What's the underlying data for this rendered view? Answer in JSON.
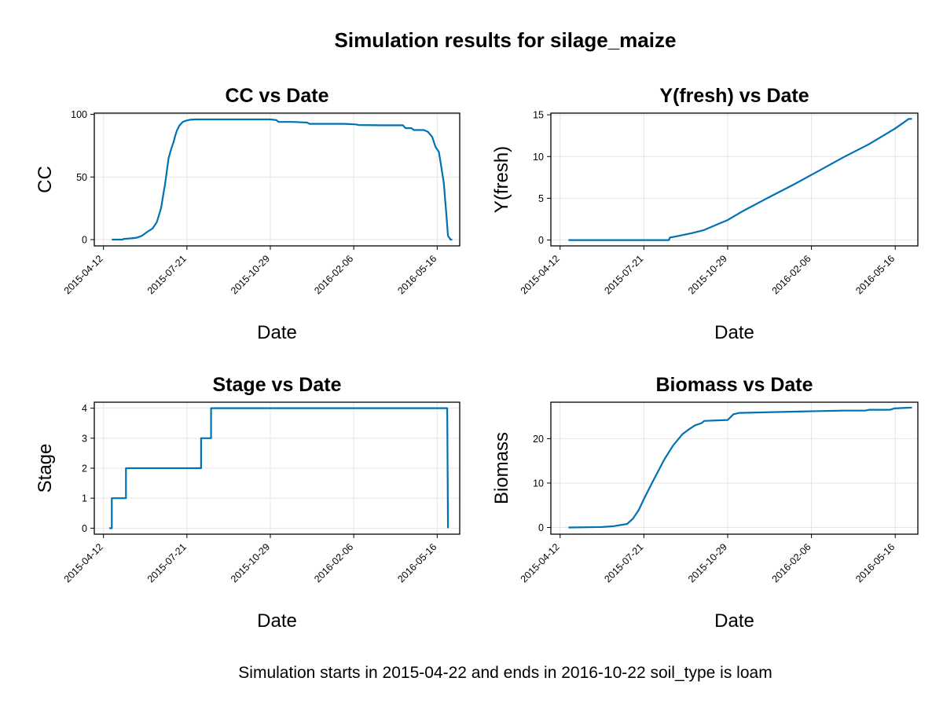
{
  "figure": {
    "title": "Simulation results for silage_maize",
    "footer": "Simulation starts in 2015-04-22 and ends in 2016-10-22 soil_type is loam",
    "line_color": "#0072b2",
    "grid_color": "#e5e5e5"
  },
  "chart_data": [
    {
      "type": "line",
      "title": "CC vs Date",
      "xlabel": "Date",
      "ylabel": "CC",
      "x_ticks": [
        "2015-04-12",
        "2015-07-21",
        "2015-10-29",
        "2016-02-06",
        "2016-05-16"
      ],
      "y_ticks": [
        0,
        50,
        100
      ],
      "xlim": [
        "2015-04-01",
        "2016-06-12"
      ],
      "ylim": [
        -5,
        101
      ],
      "grid": true,
      "series": [
        {
          "x": [
            "2015-04-22",
            "2015-05-05",
            "2015-05-06",
            "2015-05-15",
            "2015-05-22",
            "2015-05-28",
            "2015-06-03",
            "2015-06-10",
            "2015-06-15",
            "2015-06-20",
            "2015-06-25",
            "2015-06-29",
            "2015-07-02",
            "2015-07-05",
            "2015-07-07",
            "2015-07-09",
            "2015-07-12",
            "2015-07-16",
            "2015-07-20",
            "2015-07-25",
            "2015-08-01",
            "2015-08-15",
            "2015-09-10",
            "2015-10-15",
            "2015-10-29",
            "2015-11-05",
            "2015-11-08",
            "2015-11-25",
            "2015-12-12",
            "2015-12-15",
            "2016-01-25",
            "2016-02-08",
            "2016-02-12",
            "2016-03-10",
            "2016-04-05",
            "2016-04-08",
            "2016-04-15",
            "2016-04-18",
            "2016-04-30",
            "2016-05-05",
            "2016-05-10",
            "2016-05-14",
            "2016-05-18",
            "2016-05-21",
            "2016-05-24",
            "2016-05-27",
            "2016-05-29",
            "2016-06-01",
            "2016-06-03"
          ],
          "y": [
            0,
            0,
            0.5,
            1,
            1.5,
            3,
            6,
            9,
            14,
            25,
            45,
            65,
            72,
            78,
            83,
            87,
            91,
            94,
            95,
            95.7,
            96,
            96,
            96,
            96,
            96,
            95.5,
            94,
            94,
            93.5,
            92.5,
            92.5,
            92,
            91.5,
            91.3,
            91.3,
            89,
            89,
            87.5,
            87.5,
            86,
            82,
            74,
            70,
            58,
            45,
            20,
            3,
            0,
            0
          ]
        }
      ]
    },
    {
      "type": "line",
      "title": "Y(fresh) vs Date",
      "xlabel": "Date",
      "ylabel": "Y(fresh)",
      "x_ticks": [
        "2015-04-12",
        "2015-07-21",
        "2015-10-29",
        "2016-02-06",
        "2016-05-16"
      ],
      "y_ticks": [
        0,
        5,
        10,
        15
      ],
      "xlim": [
        "2015-04-01",
        "2016-06-12"
      ],
      "ylim": [
        -0.7,
        15.2
      ],
      "grid": true,
      "series": [
        {
          "x": [
            "2015-04-22",
            "2015-08-20",
            "2015-08-21",
            "2015-09-01",
            "2015-09-15",
            "2015-10-01",
            "2015-10-15",
            "2015-10-29",
            "2015-11-15",
            "2015-12-15",
            "2016-01-15",
            "2016-02-15",
            "2016-03-15",
            "2016-04-15",
            "2016-05-15",
            "2016-05-25",
            "2016-06-01",
            "2016-06-05"
          ],
          "y": [
            0,
            0,
            0.3,
            0.5,
            0.8,
            1.2,
            1.8,
            2.4,
            3.4,
            5,
            6.6,
            8.3,
            9.9,
            11.5,
            13.3,
            14,
            14.5,
            14.5
          ]
        }
      ]
    },
    {
      "type": "line",
      "title": "Stage vs Date",
      "xlabel": "Date",
      "ylabel": "Stage",
      "x_ticks": [
        "2015-04-12",
        "2015-07-21",
        "2015-10-29",
        "2016-02-06",
        "2016-05-16"
      ],
      "y_ticks": [
        0,
        1,
        2,
        3,
        4
      ],
      "xlim": [
        "2015-04-01",
        "2016-06-12"
      ],
      "ylim": [
        -0.2,
        4.2
      ],
      "grid": true,
      "series": [
        {
          "x": [
            "2015-04-19",
            "2015-04-22",
            "2015-04-22",
            "2015-05-09",
            "2015-05-09",
            "2015-08-07",
            "2015-08-07",
            "2015-08-19",
            "2015-08-19",
            "2016-05-28",
            "2016-05-29"
          ],
          "y": [
            0,
            0,
            1,
            1,
            2,
            2,
            3,
            3,
            4,
            4,
            0
          ]
        }
      ]
    },
    {
      "type": "line",
      "title": "Biomass vs Date",
      "xlabel": "Date",
      "ylabel": "Biomass",
      "x_ticks": [
        "2015-04-12",
        "2015-07-21",
        "2015-10-29",
        "2016-02-06",
        "2016-05-16"
      ],
      "y_ticks": [
        0,
        10,
        20
      ],
      "xlim": [
        "2015-04-01",
        "2016-06-12"
      ],
      "ylim": [
        -1.5,
        28.2
      ],
      "grid": true,
      "series": [
        {
          "x": [
            "2015-04-22",
            "2015-06-01",
            "2015-06-15",
            "2015-07-01",
            "2015-07-08",
            "2015-07-15",
            "2015-07-22",
            "2015-08-01",
            "2015-08-15",
            "2015-08-25",
            "2015-09-05",
            "2015-09-12",
            "2015-09-20",
            "2015-09-28",
            "2015-10-01",
            "2015-10-29",
            "2015-11-05",
            "2015-11-12",
            "2016-01-01",
            "2016-02-15",
            "2016-03-15",
            "2016-04-10",
            "2016-04-15",
            "2016-05-10",
            "2016-05-15",
            "2016-06-05"
          ],
          "y": [
            0,
            0.1,
            0.3,
            0.8,
            2,
            4,
            6.8,
            10.5,
            15.5,
            18.5,
            21,
            22,
            23,
            23.5,
            24,
            24.2,
            25.5,
            25.8,
            26,
            26.2,
            26.3,
            26.3,
            26.5,
            26.5,
            26.8,
            27
          ]
        }
      ]
    }
  ]
}
